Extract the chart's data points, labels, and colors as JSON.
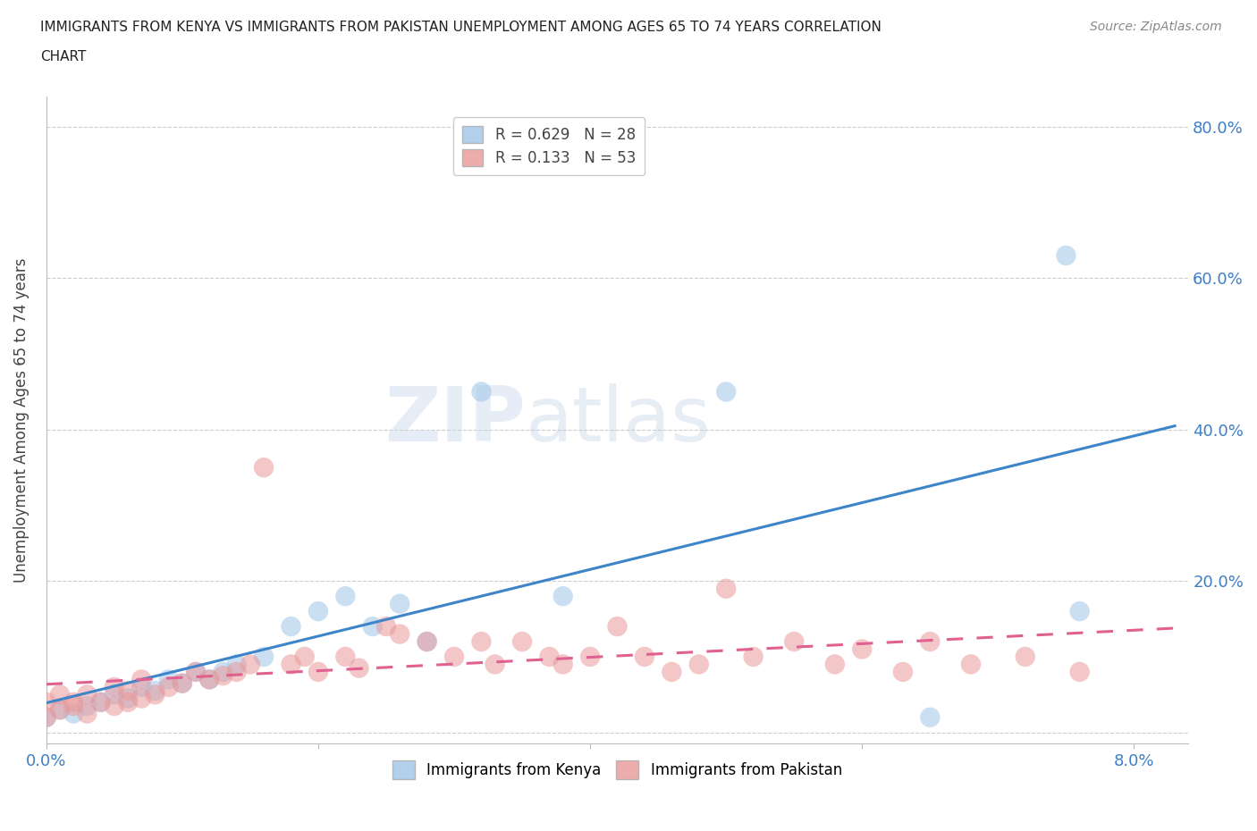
{
  "title_line1": "IMMIGRANTS FROM KENYA VS IMMIGRANTS FROM PAKISTAN UNEMPLOYMENT AMONG AGES 65 TO 74 YEARS CORRELATION",
  "title_line2": "CHART",
  "source": "Source: ZipAtlas.com",
  "ylabel": "Unemployment Among Ages 65 to 74 years",
  "kenya_R": 0.629,
  "kenya_N": 28,
  "pakistan_R": 0.133,
  "pakistan_N": 53,
  "kenya_color": "#9fc5e8",
  "pakistan_color": "#ea9999",
  "kenya_line_color": "#3d85c8",
  "pakistan_line_color": "#e06090",
  "background_color": "#ffffff",
  "xlim": [
    0.0,
    0.084
  ],
  "ylim": [
    -0.015,
    0.84
  ],
  "y_ticks": [
    0.0,
    0.2,
    0.4,
    0.6,
    0.8
  ],
  "x_ticks": [
    0.0,
    0.02,
    0.04,
    0.06,
    0.08
  ],
  "kenya_scatter_x": [
    0.0,
    0.001,
    0.002,
    0.003,
    0.004,
    0.005,
    0.006,
    0.007,
    0.008,
    0.009,
    0.01,
    0.011,
    0.012,
    0.013,
    0.014,
    0.016,
    0.018,
    0.02,
    0.022,
    0.024,
    0.026,
    0.028,
    0.032,
    0.038,
    0.05,
    0.065,
    0.075,
    0.076
  ],
  "kenya_scatter_y": [
    0.02,
    0.03,
    0.025,
    0.035,
    0.04,
    0.05,
    0.045,
    0.06,
    0.055,
    0.07,
    0.065,
    0.08,
    0.07,
    0.08,
    0.09,
    0.1,
    0.14,
    0.16,
    0.18,
    0.14,
    0.17,
    0.12,
    0.45,
    0.18,
    0.45,
    0.02,
    0.63,
    0.16
  ],
  "pakistan_scatter_x": [
    0.0,
    0.0,
    0.001,
    0.001,
    0.002,
    0.002,
    0.003,
    0.003,
    0.004,
    0.005,
    0.005,
    0.006,
    0.006,
    0.007,
    0.007,
    0.008,
    0.009,
    0.01,
    0.011,
    0.012,
    0.013,
    0.014,
    0.015,
    0.016,
    0.018,
    0.019,
    0.02,
    0.022,
    0.023,
    0.025,
    0.026,
    0.028,
    0.03,
    0.032,
    0.033,
    0.035,
    0.037,
    0.038,
    0.04,
    0.042,
    0.044,
    0.046,
    0.048,
    0.05,
    0.052,
    0.055,
    0.058,
    0.06,
    0.063,
    0.065,
    0.068,
    0.072,
    0.076
  ],
  "pakistan_scatter_y": [
    0.02,
    0.04,
    0.03,
    0.05,
    0.035,
    0.04,
    0.025,
    0.05,
    0.04,
    0.035,
    0.06,
    0.04,
    0.055,
    0.045,
    0.07,
    0.05,
    0.06,
    0.065,
    0.08,
    0.07,
    0.075,
    0.08,
    0.09,
    0.35,
    0.09,
    0.1,
    0.08,
    0.1,
    0.085,
    0.14,
    0.13,
    0.12,
    0.1,
    0.12,
    0.09,
    0.12,
    0.1,
    0.09,
    0.1,
    0.14,
    0.1,
    0.08,
    0.09,
    0.19,
    0.1,
    0.12,
    0.09,
    0.11,
    0.08,
    0.12,
    0.09,
    0.1,
    0.08
  ]
}
